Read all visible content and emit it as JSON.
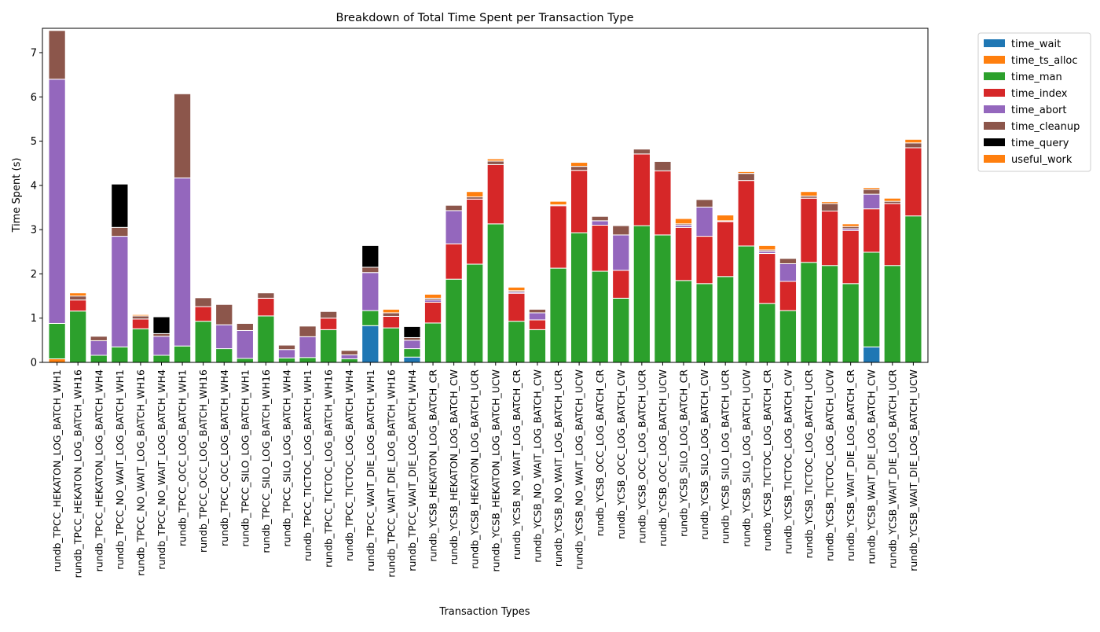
{
  "chart_data": {
    "type": "bar",
    "stacked": true,
    "title": "Breakdown of Total Time Spent per Transaction Type",
    "xlabel": "Transaction Types",
    "ylabel": "Time Spent (s)",
    "ylim": [
      0,
      7.55
    ],
    "yticks": [
      "0",
      "1",
      "2",
      "3",
      "4",
      "5",
      "6",
      "7"
    ],
    "grid": false,
    "legend_position": "outside top-right",
    "categories": [
      "rundb_TPCC_HEKATON_LOG_BATCH_WH1",
      "rundb_TPCC_HEKATON_LOG_BATCH_WH16",
      "rundb_TPCC_HEKATON_LOG_BATCH_WH4",
      "rundb_TPCC_NO_WAIT_LOG_BATCH_WH1",
      "rundb_TPCC_NO_WAIT_LOG_BATCH_WH16",
      "rundb_TPCC_NO_WAIT_LOG_BATCH_WH4",
      "rundb_TPCC_OCC_LOG_BATCH_WH1",
      "rundb_TPCC_OCC_LOG_BATCH_WH16",
      "rundb_TPCC_OCC_LOG_BATCH_WH4",
      "rundb_TPCC_SILO_LOG_BATCH_WH1",
      "rundb_TPCC_SILO_LOG_BATCH_WH16",
      "rundb_TPCC_SILO_LOG_BATCH_WH4",
      "rundb_TPCC_TICTOC_LOG_BATCH_WH1",
      "rundb_TPCC_TICTOC_LOG_BATCH_WH16",
      "rundb_TPCC_TICTOC_LOG_BATCH_WH4",
      "rundb_TPCC_WAIT_DIE_LOG_BATCH_WH1",
      "rundb_TPCC_WAIT_DIE_LOG_BATCH_WH16",
      "rundb_TPCC_WAIT_DIE_LOG_BATCH_WH4",
      "rundb_YCSB_HEKATON_LOG_BATCH_CR",
      "rundb_YCSB_HEKATON_LOG_BATCH_CW",
      "rundb_YCSB_HEKATON_LOG_BATCH_UCR",
      "rundb_YCSB_HEKATON_LOG_BATCH_UCW",
      "rundb_YCSB_NO_WAIT_LOG_BATCH_CR",
      "rundb_YCSB_NO_WAIT_LOG_BATCH_CW",
      "rundb_YCSB_NO_WAIT_LOG_BATCH_UCR",
      "rundb_YCSB_NO_WAIT_LOG_BATCH_UCW",
      "rundb_YCSB_OCC_LOG_BATCH_CR",
      "rundb_YCSB_OCC_LOG_BATCH_CW",
      "rundb_YCSB_OCC_LOG_BATCH_UCR",
      "rundb_YCSB_OCC_LOG_BATCH_UCW",
      "rundb_YCSB_SILO_LOG_BATCH_CR",
      "rundb_YCSB_SILO_LOG_BATCH_CW",
      "rundb_YCSB_SILO_LOG_BATCH_UCR",
      "rundb_YCSB_SILO_LOG_BATCH_UCW",
      "rundb_YCSB_TICTOC_LOG_BATCH_CR",
      "rundb_YCSB_TICTOC_LOG_BATCH_CW",
      "rundb_YCSB_TICTOC_LOG_BATCH_UCR",
      "rundb_YCSB_TICTOC_LOG_BATCH_UCW",
      "rundb_YCSB_WAIT_DIE_LOG_BATCH_CR",
      "rundb_YCSB_WAIT_DIE_LOG_BATCH_CW",
      "rundb_YCSB_WAIT_DIE_LOG_BATCH_UCR",
      "rundb_YCSB_WAIT_DIE_LOG_BATCH_UCW"
    ],
    "series": [
      {
        "name": "time_wait",
        "color": "#1f77b4",
        "values": [
          0,
          0,
          0,
          0,
          0,
          0,
          0,
          0,
          0,
          0,
          0,
          0,
          0,
          0,
          0,
          0.83,
          0,
          0.12,
          0,
          0,
          0,
          0,
          0,
          0,
          0,
          0,
          0,
          0,
          0,
          0,
          0,
          0,
          0,
          0,
          0,
          0,
          0,
          0,
          0,
          0.35,
          0,
          0
        ]
      },
      {
        "name": "time_ts_alloc",
        "color": "#ff7f0e",
        "values": [
          0.08,
          0,
          0,
          0,
          0,
          0,
          0,
          0,
          0,
          0,
          0,
          0,
          0,
          0,
          0,
          0,
          0,
          0,
          0,
          0,
          0,
          0,
          0,
          0,
          0,
          0,
          0,
          0,
          0,
          0,
          0,
          0,
          0,
          0,
          0,
          0,
          0,
          0,
          0,
          0,
          0,
          0
        ]
      },
      {
        "name": "time_man",
        "color": "#2ca02c",
        "values": [
          0.8,
          1.16,
          0.16,
          0.35,
          0.76,
          0.16,
          0.37,
          0.93,
          0.31,
          0.09,
          1.05,
          0.1,
          0.11,
          0.74,
          0.08,
          0.34,
          0.78,
          0.19,
          0.89,
          1.88,
          2.22,
          3.13,
          0.93,
          0.74,
          2.13,
          2.93,
          2.06,
          1.45,
          3.09,
          2.88,
          1.85,
          1.78,
          1.94,
          2.63,
          1.33,
          1.17,
          2.26,
          2.19,
          1.78,
          2.14,
          2.19,
          3.31
        ]
      },
      {
        "name": "time_index",
        "color": "#d62728",
        "values": [
          0,
          0.25,
          0,
          0,
          0.22,
          0,
          0,
          0.33,
          0,
          0,
          0.4,
          0,
          0,
          0.26,
          0,
          0,
          0.26,
          0,
          0.47,
          0.8,
          1.47,
          1.34,
          0.63,
          0.22,
          1.41,
          1.41,
          1.04,
          0.63,
          1.62,
          1.45,
          1.2,
          1.07,
          1.24,
          1.48,
          1.13,
          0.66,
          1.45,
          1.23,
          1.2,
          0.98,
          1.4,
          1.54
        ]
      },
      {
        "name": "time_abort",
        "color": "#9467bd",
        "values": [
          5.52,
          0,
          0.33,
          2.5,
          0,
          0.43,
          3.8,
          0,
          0.54,
          0.63,
          0,
          0.19,
          0.47,
          0,
          0.09,
          0.86,
          0,
          0.19,
          0.05,
          0.75,
          0,
          0,
          0.03,
          0.16,
          0,
          0,
          0.1,
          0.8,
          0,
          0,
          0.05,
          0.66,
          0,
          0,
          0.05,
          0.4,
          0,
          0,
          0.04,
          0.33,
          0,
          0
        ]
      },
      {
        "name": "time_cleanup",
        "color": "#8c564b",
        "values": [
          1.1,
          0.09,
          0.1,
          0.2,
          0.07,
          0.06,
          1.9,
          0.2,
          0.46,
          0.16,
          0.12,
          0.1,
          0.24,
          0.15,
          0.1,
          0.12,
          0.08,
          0.06,
          0.04,
          0.12,
          0.05,
          0.08,
          0.03,
          0.08,
          0.02,
          0.09,
          0.1,
          0.21,
          0.11,
          0.21,
          0.03,
          0.17,
          0.02,
          0.16,
          0.03,
          0.12,
          0.05,
          0.17,
          0.05,
          0.11,
          0.05,
          0.11
        ]
      },
      {
        "name": "time_query",
        "color": "#000000",
        "values": [
          0,
          0,
          0,
          0.98,
          0,
          0.38,
          0,
          0,
          0,
          0,
          0,
          0,
          0,
          0,
          0,
          0.49,
          0,
          0.25,
          0,
          0,
          0,
          0,
          0,
          0,
          0,
          0,
          0,
          0,
          0,
          0,
          0,
          0,
          0,
          0,
          0,
          0,
          0,
          0,
          0,
          0,
          0,
          0
        ]
      },
      {
        "name": "useful_work",
        "color": "#ff7f0e",
        "values": [
          0,
          0.07,
          0,
          0,
          0.03,
          0,
          0,
          0,
          0,
          0,
          0,
          0,
          0,
          0,
          0,
          0,
          0.08,
          0,
          0.09,
          0,
          0.12,
          0.05,
          0.08,
          0,
          0.08,
          0.09,
          0,
          0,
          0,
          0,
          0.12,
          0,
          0.13,
          0.04,
          0.1,
          0,
          0.1,
          0.04,
          0.06,
          0.04,
          0.07,
          0.08
        ]
      }
    ]
  }
}
